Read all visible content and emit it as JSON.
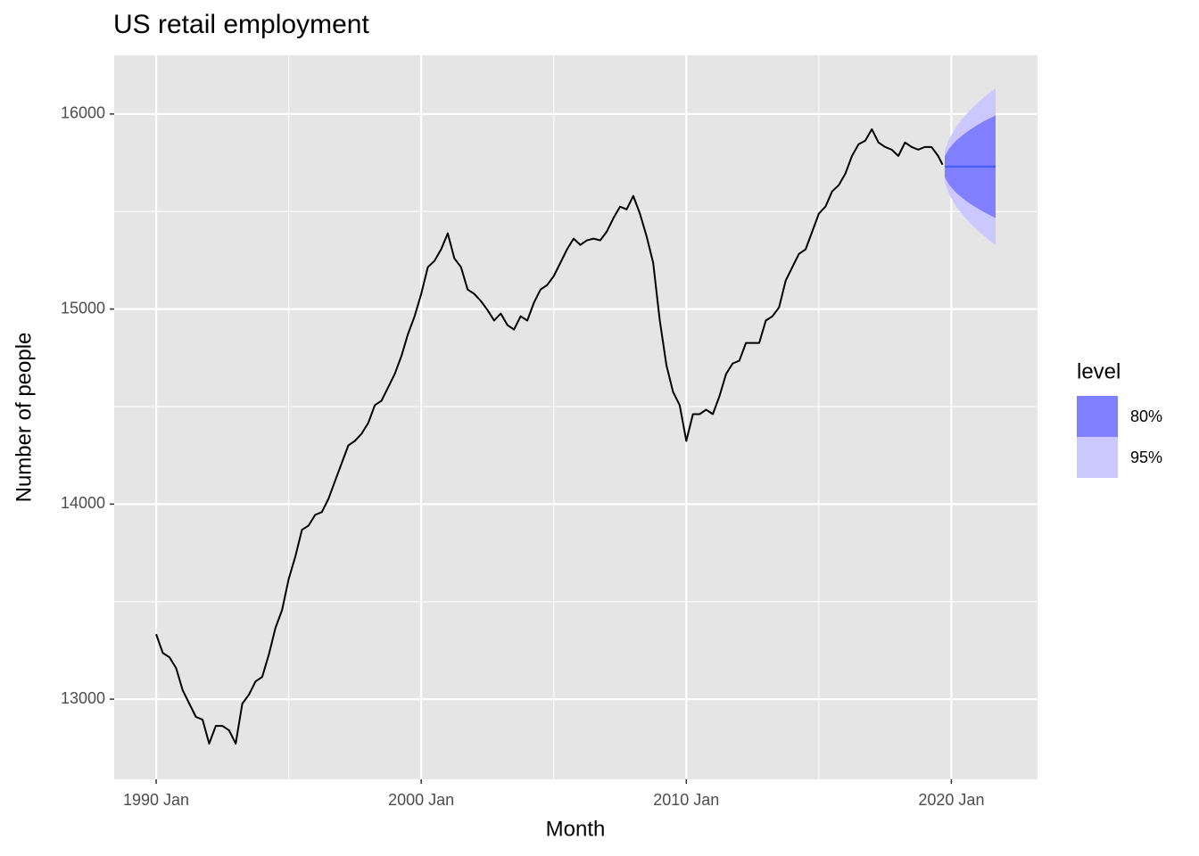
{
  "chart_data": {
    "type": "line",
    "title": "US retail employment",
    "x_label": "Month",
    "y_label": "Number of people",
    "legend_title": "level",
    "grid": true,
    "legend": "right",
    "color": "#000000",
    "xlim": [
      "1988-06",
      "2023-04"
    ],
    "xticks": [
      {
        "value": "1990-01",
        "label": "1990 Jan"
      },
      {
        "value": "2000-01",
        "label": "2000 Jan"
      },
      {
        "value": "2010-01",
        "label": "2010 Jan"
      },
      {
        "value": "2020-01",
        "label": "2020 Jan"
      }
    ],
    "ylim": [
      12589,
      16301
    ],
    "yticks": [
      13000,
      14000,
      15000,
      16000
    ],
    "x": [
      "1990-01",
      "1990-04",
      "1990-07",
      "1990-10",
      "1991-01",
      "1991-04",
      "1991-07",
      "1991-10",
      "1992-01",
      "1992-04",
      "1992-07",
      "1992-10",
      "1993-01",
      "1993-04",
      "1993-07",
      "1993-10",
      "1994-01",
      "1994-04",
      "1994-07",
      "1994-10",
      "1995-01",
      "1995-04",
      "1995-07",
      "1995-10",
      "1996-01",
      "1996-04",
      "1996-07",
      "1996-10",
      "1997-01",
      "1997-04",
      "1997-07",
      "1997-10",
      "1998-01",
      "1998-04",
      "1998-07",
      "1998-10",
      "1999-01",
      "1999-04",
      "1999-07",
      "1999-10",
      "2000-01",
      "2000-04",
      "2000-07",
      "2000-10",
      "2001-01",
      "2001-04",
      "2001-07",
      "2001-10",
      "2002-01",
      "2002-04",
      "2002-07",
      "2002-10",
      "2003-01",
      "2003-04",
      "2003-07",
      "2003-10",
      "2004-01",
      "2004-04",
      "2004-07",
      "2004-10",
      "2005-01",
      "2005-04",
      "2005-07",
      "2005-10",
      "2006-01",
      "2006-04",
      "2006-07",
      "2006-10",
      "2007-01",
      "2007-04",
      "2007-07",
      "2007-10",
      "2008-01",
      "2008-04",
      "2008-07",
      "2008-10",
      "2009-01",
      "2009-04",
      "2009-07",
      "2009-10",
      "2010-01",
      "2010-04",
      "2010-07",
      "2010-10",
      "2011-01",
      "2011-04",
      "2011-07",
      "2011-10",
      "2012-01",
      "2012-04",
      "2012-07",
      "2012-10",
      "2013-01",
      "2013-04",
      "2013-07",
      "2013-10",
      "2014-01",
      "2014-04",
      "2014-07",
      "2014-10",
      "2015-01",
      "2015-04",
      "2015-07",
      "2015-10",
      "2016-01",
      "2016-04",
      "2016-07",
      "2016-10",
      "2017-01",
      "2017-04",
      "2017-07",
      "2017-10",
      "2018-01",
      "2018-04",
      "2018-07",
      "2018-10",
      "2019-01",
      "2019-04",
      "2019-07",
      "2019-09"
    ],
    "values": [
      13333,
      13237,
      13215,
      13160,
      13046,
      12977,
      12909,
      12895,
      12772,
      12863,
      12863,
      12840,
      12772,
      12977,
      13023,
      13091,
      13114,
      13228,
      13365,
      13457,
      13616,
      13731,
      13868,
      13890,
      13945,
      13959,
      14027,
      14119,
      14210,
      14301,
      14324,
      14361,
      14416,
      14507,
      14530,
      14598,
      14667,
      14758,
      14872,
      14963,
      15078,
      15215,
      15247,
      15306,
      15388,
      15260,
      15215,
      15100,
      15078,
      15041,
      14995,
      14941,
      14977,
      14918,
      14895,
      14963,
      14941,
      15032,
      15100,
      15123,
      15169,
      15237,
      15306,
      15361,
      15329,
      15352,
      15361,
      15352,
      15397,
      15466,
      15525,
      15511,
      15580,
      15489,
      15374,
      15237,
      14941,
      14712,
      14575,
      14507,
      14324,
      14461,
      14461,
      14484,
      14461,
      14553,
      14667,
      14721,
      14735,
      14826,
      14826,
      14826,
      14941,
      14963,
      15009,
      15146,
      15215,
      15283,
      15306,
      15397,
      15489,
      15525,
      15603,
      15635,
      15694,
      15785,
      15845,
      15863,
      15922,
      15854,
      15831,
      15817,
      15785,
      15854,
      15831,
      15817,
      15831,
      15831,
      15785,
      15740
    ],
    "forecast": {
      "x": [
        "2019-10",
        "2019-12",
        "2020-03",
        "2020-06",
        "2020-09",
        "2020-12",
        "2021-03",
        "2021-06",
        "2021-09"
      ],
      "values": [
        15730,
        15730,
        15730,
        15730,
        15730,
        15730,
        15730,
        15730,
        15730
      ],
      "color": "#4a5ef0",
      "intervals": [
        {
          "name": "80%",
          "color": "#8080ff",
          "lower": [
            15676,
            15637,
            15598,
            15569,
            15544,
            15522,
            15502,
            15484,
            15467
          ],
          "upper": [
            15784,
            15823,
            15862,
            15891,
            15916,
            15938,
            15958,
            15976,
            15993
          ]
        },
        {
          "name": "95%",
          "color": "#cbc8ff",
          "lower": [
            15648,
            15588,
            15529,
            15484,
            15446,
            15412,
            15382,
            15354,
            15328
          ],
          "upper": [
            15812,
            15872,
            15931,
            15976,
            16014,
            16048,
            16078,
            16106,
            16132
          ]
        }
      ]
    }
  }
}
